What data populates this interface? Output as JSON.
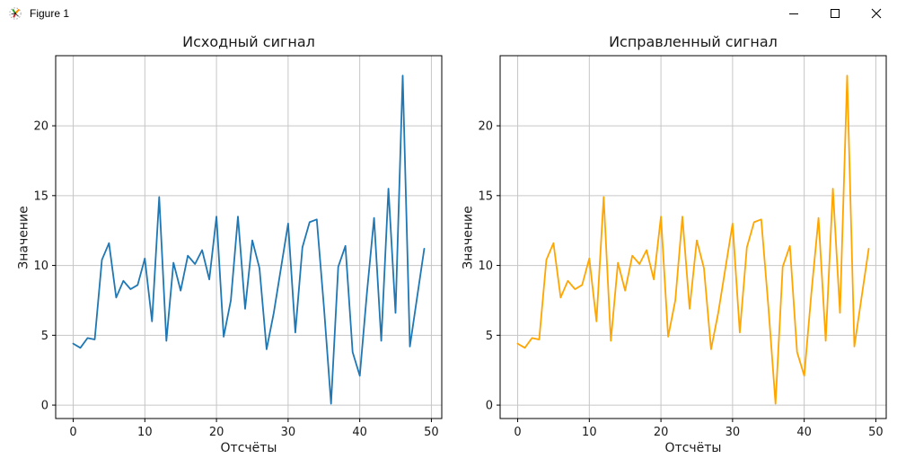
{
  "window": {
    "title": "Figure 1",
    "icons": {
      "app": "matplotlib-logo-icon",
      "minimize": "minimize-icon",
      "maximize": "maximize-icon",
      "close": "close-icon"
    }
  },
  "style": {
    "background": "#ffffff",
    "text": "#1a1a1a",
    "grid": "#c6c6c6",
    "spine": "#000000",
    "signal_blue": "#1f77b4",
    "signal_orange": "#ffa500"
  },
  "chart_data": [
    {
      "type": "line",
      "title": "Исходный сигнал",
      "xlabel": "Отсчёты",
      "ylabel": "Значение",
      "color": "#1f77b4",
      "grid": true,
      "legend": "none",
      "xlim": [
        -2.45,
        51.45
      ],
      "ylim": [
        -0.96,
        25.02
      ],
      "xticks": [
        0,
        10,
        20,
        30,
        40,
        50
      ],
      "yticks": [
        0,
        5,
        10,
        15,
        20
      ],
      "x": [
        0,
        1,
        2,
        3,
        4,
        5,
        6,
        7,
        8,
        9,
        10,
        11,
        12,
        13,
        14,
        15,
        16,
        17,
        18,
        19,
        20,
        21,
        22,
        23,
        24,
        25,
        26,
        27,
        28,
        29,
        30,
        31,
        32,
        33,
        34,
        35,
        36,
        37,
        38,
        39,
        40,
        41,
        42,
        43,
        44,
        45,
        46,
        47,
        48,
        49
      ],
      "values": [
        4.4,
        4.1,
        4.8,
        4.7,
        10.4,
        11.6,
        7.7,
        8.9,
        8.3,
        8.6,
        10.5,
        6.0,
        14.9,
        4.6,
        10.2,
        8.2,
        10.7,
        10.1,
        11.1,
        9.0,
        13.5,
        4.9,
        7.5,
        13.5,
        6.9,
        11.8,
        9.8,
        4.0,
        6.6,
        9.8,
        13.0,
        5.2,
        11.3,
        13.1,
        13.3,
        7.0,
        0.1,
        9.9,
        11.4,
        3.8,
        2.1,
        8.0,
        13.4,
        4.6,
        15.5,
        6.6,
        23.6,
        4.2,
        7.7,
        11.2
      ]
    },
    {
      "type": "line",
      "title": "Исправленный сигнал",
      "xlabel": "Отсчёты",
      "ylabel": "Значение",
      "color": "#ffa500",
      "grid": true,
      "legend": "none",
      "xlim": [
        -2.45,
        51.45
      ],
      "ylim": [
        -0.96,
        25.02
      ],
      "xticks": [
        0,
        10,
        20,
        30,
        40,
        50
      ],
      "yticks": [
        0,
        5,
        10,
        15,
        20
      ],
      "x": [
        0,
        1,
        2,
        3,
        4,
        5,
        6,
        7,
        8,
        9,
        10,
        11,
        12,
        13,
        14,
        15,
        16,
        17,
        18,
        19,
        20,
        21,
        22,
        23,
        24,
        25,
        26,
        27,
        28,
        29,
        30,
        31,
        32,
        33,
        34,
        35,
        36,
        37,
        38,
        39,
        40,
        41,
        42,
        43,
        44,
        45,
        46,
        47,
        48,
        49
      ],
      "values": [
        4.4,
        4.1,
        4.8,
        4.7,
        10.4,
        11.6,
        7.7,
        8.9,
        8.3,
        8.6,
        10.5,
        6.0,
        14.9,
        4.6,
        10.2,
        8.2,
        10.7,
        10.1,
        11.1,
        9.0,
        13.5,
        4.9,
        7.5,
        13.5,
        6.9,
        11.8,
        9.8,
        4.0,
        6.6,
        9.8,
        13.0,
        5.2,
        11.3,
        13.1,
        13.3,
        7.0,
        0.1,
        9.9,
        11.4,
        3.8,
        2.1,
        8.0,
        13.4,
        4.6,
        15.5,
        6.6,
        23.6,
        4.2,
        7.7,
        11.2
      ]
    }
  ]
}
